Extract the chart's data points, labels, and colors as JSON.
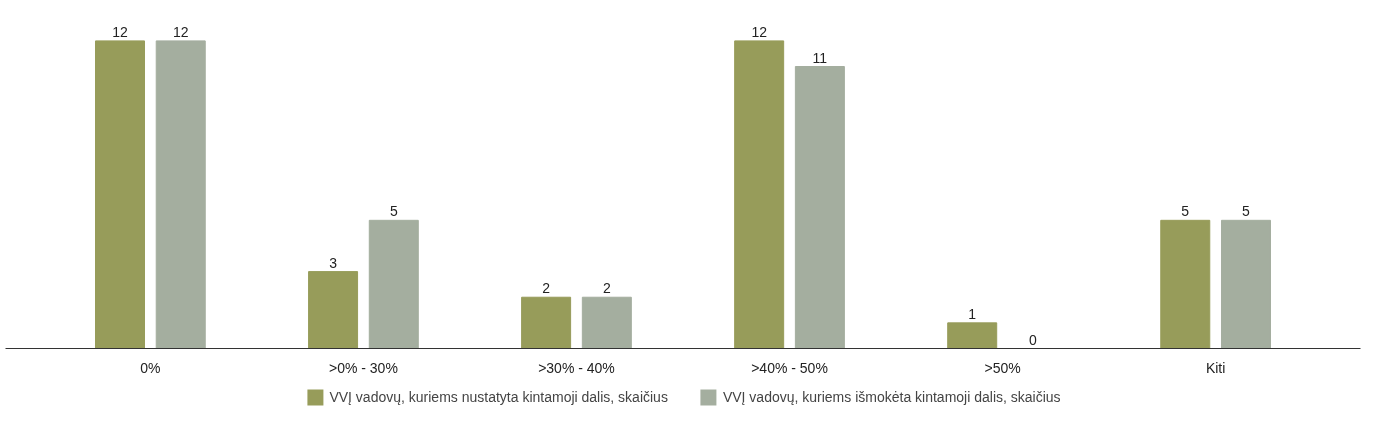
{
  "chart_data": {
    "type": "bar",
    "categories": [
      "0%",
      ">0% - 30%",
      ">30% - 40%",
      ">40% - 50%",
      ">50%",
      "Kiti"
    ],
    "series": [
      {
        "name": "VVĮ vadovų, kuriems nustatyta kintamoji dalis, skaičius",
        "color": "#979c5a",
        "values": [
          12,
          3,
          2,
          12,
          1,
          5
        ]
      },
      {
        "name": "VVĮ vadovų, kuriems išmokėta kintamoji dalis, skaičius",
        "color": "#a4ae9f",
        "values": [
          12,
          5,
          2,
          11,
          0,
          5
        ]
      }
    ],
    "data_labels": true,
    "legend": "bottom",
    "grid": false
  }
}
